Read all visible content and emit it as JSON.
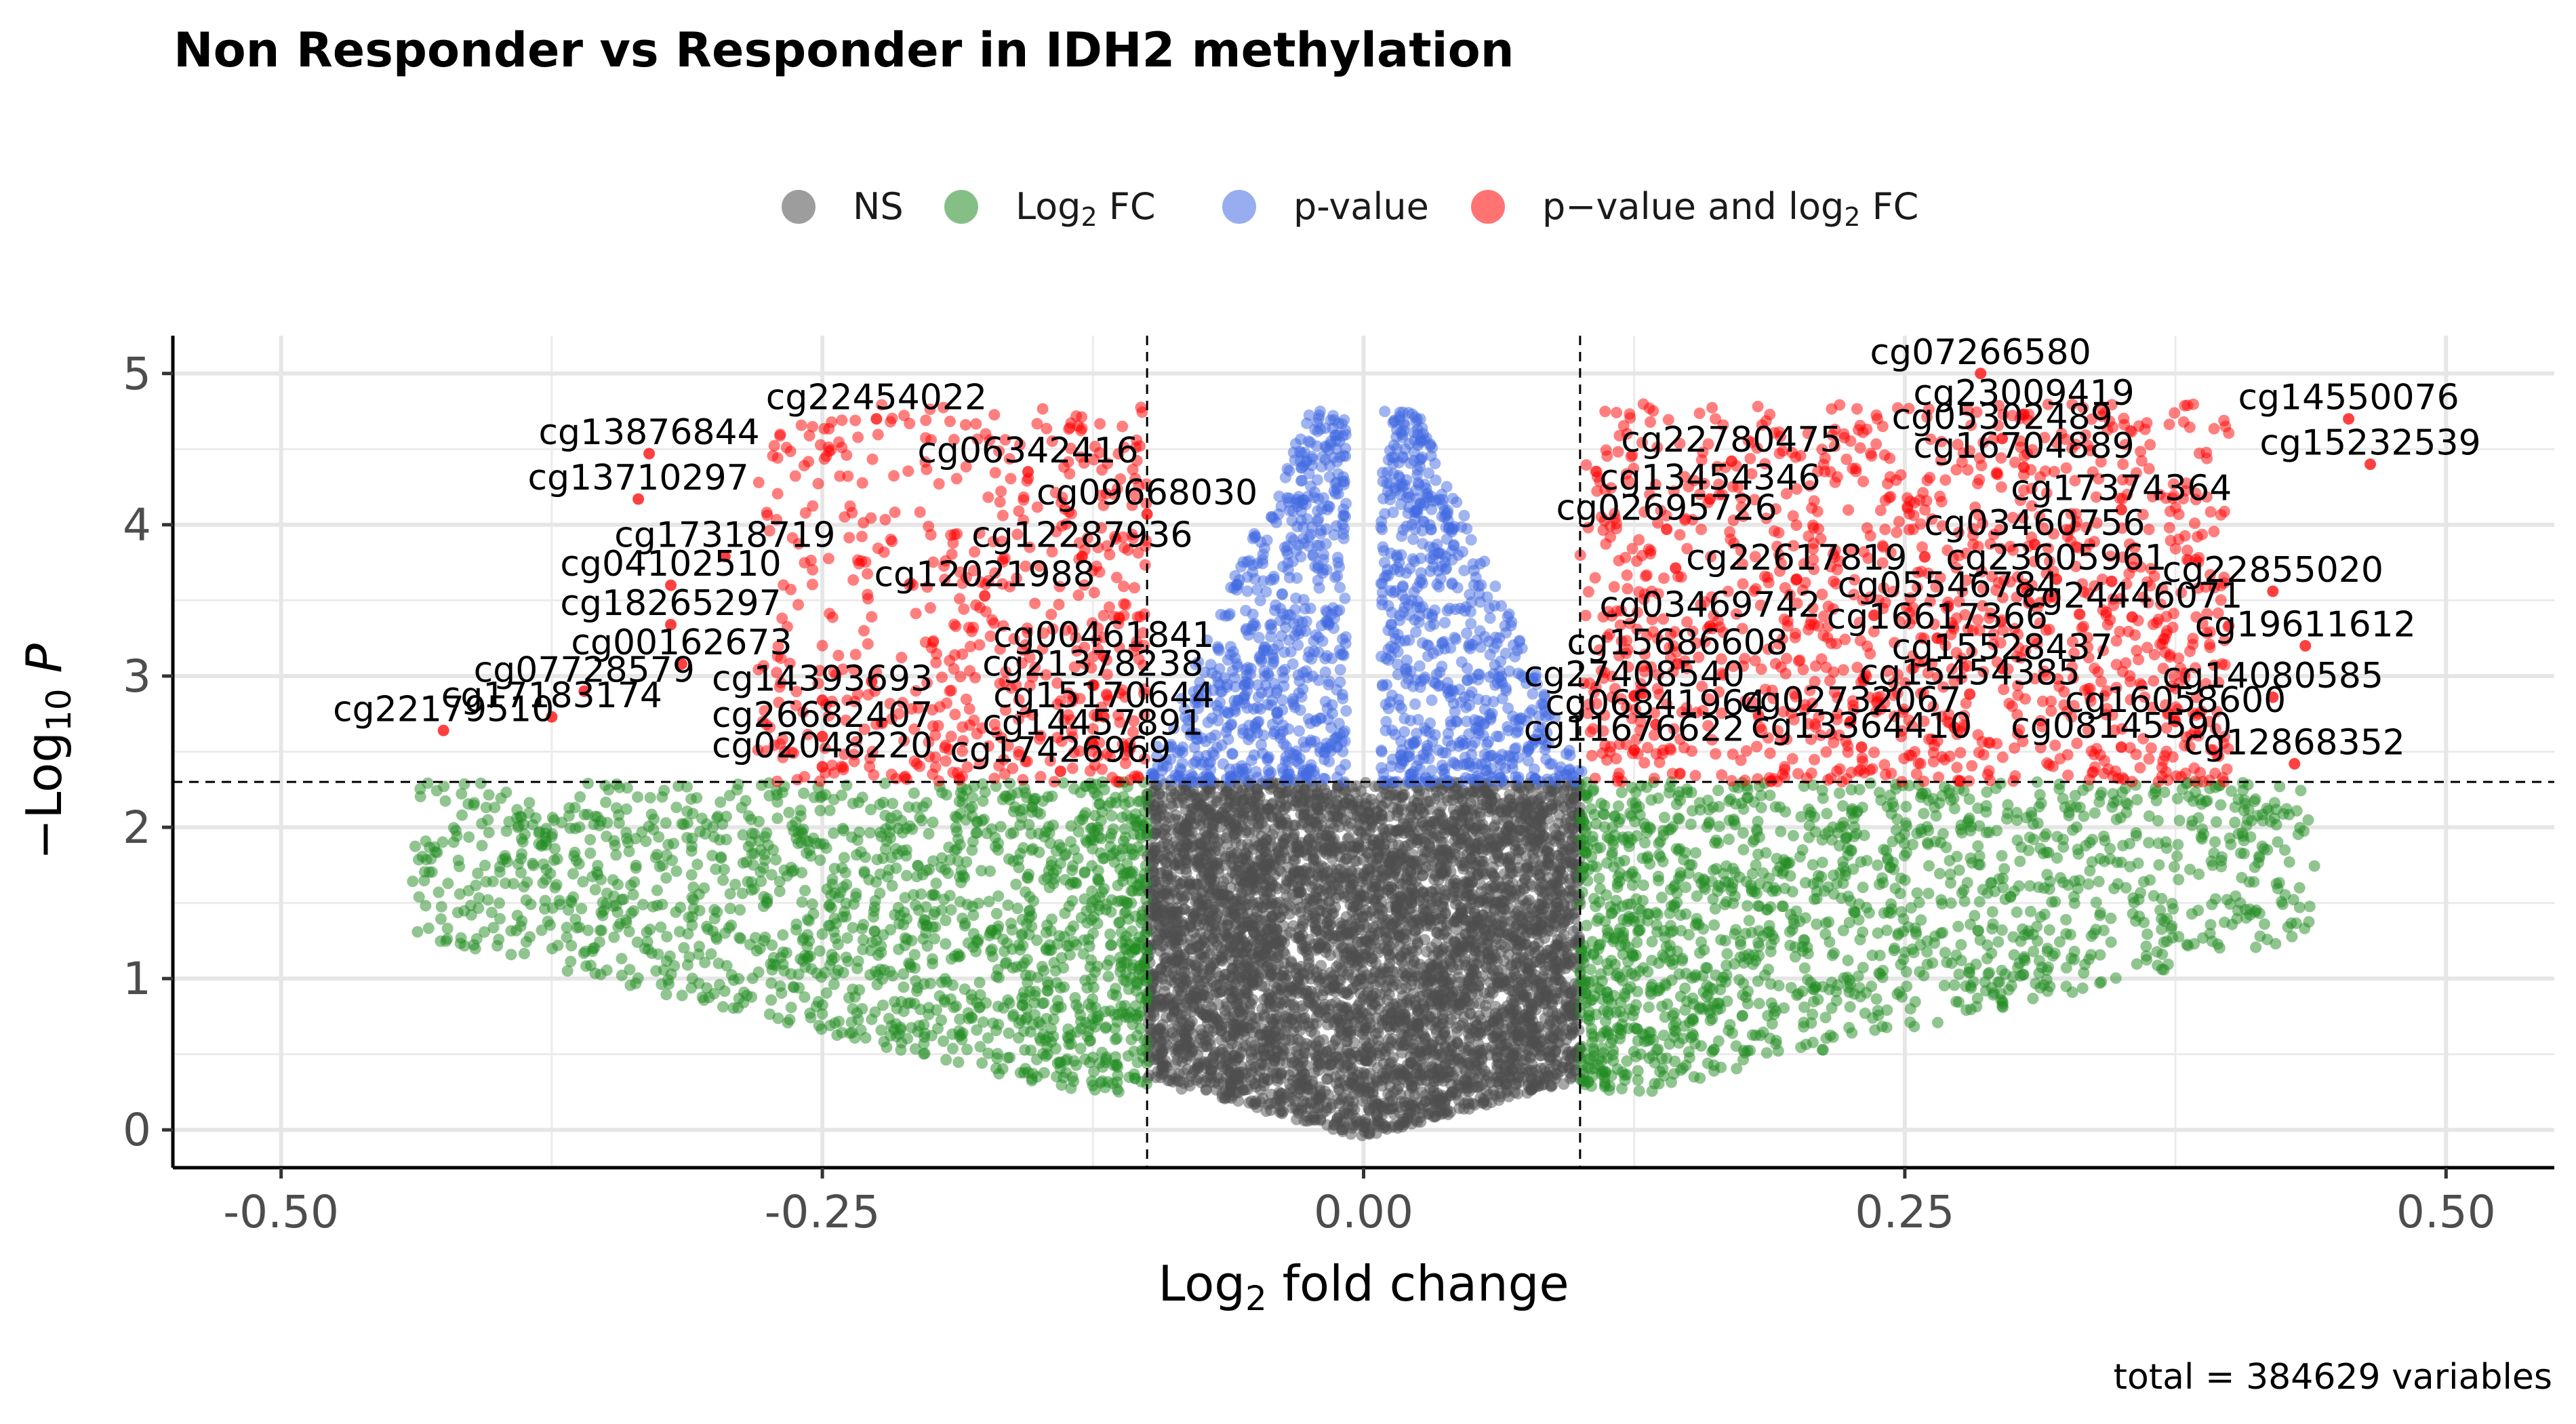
{
  "chart_data": {
    "type": "scatter",
    "title": "Non Responder vs Responder in IDH2 methylation",
    "xlabel": "Log2 fold change",
    "ylabel": "-Log10 P",
    "caption": "total = 384629 variables",
    "xlim": [
      -0.55,
      0.55
    ],
    "ylim": [
      -0.25,
      5.25
    ],
    "xticks": [
      "-0.50",
      "-0.25",
      "0.00",
      "0.25",
      "0.50"
    ],
    "yticks": [
      "0",
      "1",
      "2",
      "3",
      "4",
      "5"
    ],
    "thresholds": {
      "log2fc": 0.1,
      "p_log10": 2.3
    },
    "legend": {
      "placement": "top",
      "entries": [
        {
          "label": "NS",
          "color": "#4d4d4d"
        },
        {
          "label": "Log2 FC",
          "color": "#228b22"
        },
        {
          "label": "p-value",
          "color": "#4169e1"
        },
        {
          "label": "p-value and log2 FC",
          "color": "#ff0000"
        }
      ]
    },
    "labeled_points": [
      {
        "label": "cg07266580",
        "x": 0.285,
        "y": 5.0
      },
      {
        "label": "cg23009419",
        "x": 0.305,
        "y": 4.73
      },
      {
        "label": "cg14550076",
        "x": 0.455,
        "y": 4.7
      },
      {
        "label": "cg05302489",
        "x": 0.295,
        "y": 4.57
      },
      {
        "label": "cg15232539",
        "x": 0.465,
        "y": 4.4
      },
      {
        "label": "cg22780475",
        "x": 0.17,
        "y": 4.42
      },
      {
        "label": "cg16704889",
        "x": 0.305,
        "y": 4.38
      },
      {
        "label": "cg13454346",
        "x": 0.16,
        "y": 4.17
      },
      {
        "label": "cg17374364",
        "x": 0.35,
        "y": 4.1
      },
      {
        "label": "cg02695726",
        "x": 0.14,
        "y": 3.97
      },
      {
        "label": "cg03460756",
        "x": 0.31,
        "y": 3.87
      },
      {
        "label": "cg22617819",
        "x": 0.2,
        "y": 3.64
      },
      {
        "label": "cg23605961",
        "x": 0.32,
        "y": 3.64
      },
      {
        "label": "cg22855020",
        "x": 0.42,
        "y": 3.56
      },
      {
        "label": "cg05546784",
        "x": 0.27,
        "y": 3.46
      },
      {
        "label": "cg03469742",
        "x": 0.16,
        "y": 3.33
      },
      {
        "label": "cg24446071",
        "x": 0.355,
        "y": 3.39
      },
      {
        "label": "cg16617366",
        "x": 0.265,
        "y": 3.25
      },
      {
        "label": "cg19611612",
        "x": 0.435,
        "y": 3.2
      },
      {
        "label": "cg15686608",
        "x": 0.145,
        "y": 3.08
      },
      {
        "label": "cg15528437",
        "x": 0.295,
        "y": 3.05
      },
      {
        "label": "cg14080585",
        "x": 0.42,
        "y": 2.86
      },
      {
        "label": "cg27408540",
        "x": 0.125,
        "y": 2.87
      },
      {
        "label": "cg15454385",
        "x": 0.28,
        "y": 2.88
      },
      {
        "label": "cg06841964",
        "x": 0.135,
        "y": 2.68
      },
      {
        "label": "cg02732067",
        "x": 0.225,
        "y": 2.7
      },
      {
        "label": "cg16058600",
        "x": 0.375,
        "y": 2.7
      },
      {
        "label": "cg11676622",
        "x": 0.125,
        "y": 2.51
      },
      {
        "label": "cg13364410",
        "x": 0.23,
        "y": 2.53
      },
      {
        "label": "cg08145590",
        "x": 0.35,
        "y": 2.53
      },
      {
        "label": "cg12868352",
        "x": 0.43,
        "y": 2.42
      },
      {
        "label": "cg22454022",
        "x": -0.225,
        "y": 4.7
      },
      {
        "label": "cg13876844",
        "x": -0.33,
        "y": 4.47
      },
      {
        "label": "cg06342416",
        "x": -0.155,
        "y": 4.35
      },
      {
        "label": "cg13710297",
        "x": -0.335,
        "y": 4.17
      },
      {
        "label": "cg09668030",
        "x": -0.1,
        "y": 4.07
      },
      {
        "label": "cg17318719",
        "x": -0.295,
        "y": 3.79
      },
      {
        "label": "cg12287936",
        "x": -0.13,
        "y": 3.79
      },
      {
        "label": "cg04102510",
        "x": -0.32,
        "y": 3.6
      },
      {
        "label": "cg12021988",
        "x": -0.175,
        "y": 3.53
      },
      {
        "label": "cg18265297",
        "x": -0.32,
        "y": 3.34
      },
      {
        "label": "cg00461841",
        "x": -0.12,
        "y": 3.13
      },
      {
        "label": "cg00162673",
        "x": -0.315,
        "y": 3.08
      },
      {
        "label": "cg21378238",
        "x": -0.125,
        "y": 2.94
      },
      {
        "label": "cg07728579",
        "x": -0.36,
        "y": 2.9
      },
      {
        "label": "cg14393693",
        "x": -0.25,
        "y": 2.84
      },
      {
        "label": "cg17183174",
        "x": -0.375,
        "y": 2.73
      },
      {
        "label": "cg15170644",
        "x": -0.12,
        "y": 2.73
      },
      {
        "label": "cg26682407",
        "x": -0.25,
        "y": 2.6
      },
      {
        "label": "cg22179510",
        "x": -0.425,
        "y": 2.64
      },
      {
        "label": "cg14457891",
        "x": -0.125,
        "y": 2.55
      },
      {
        "label": "cg02048220",
        "x": -0.25,
        "y": 2.4
      },
      {
        "label": "cg17426969",
        "x": -0.14,
        "y": 2.37
      }
    ]
  }
}
